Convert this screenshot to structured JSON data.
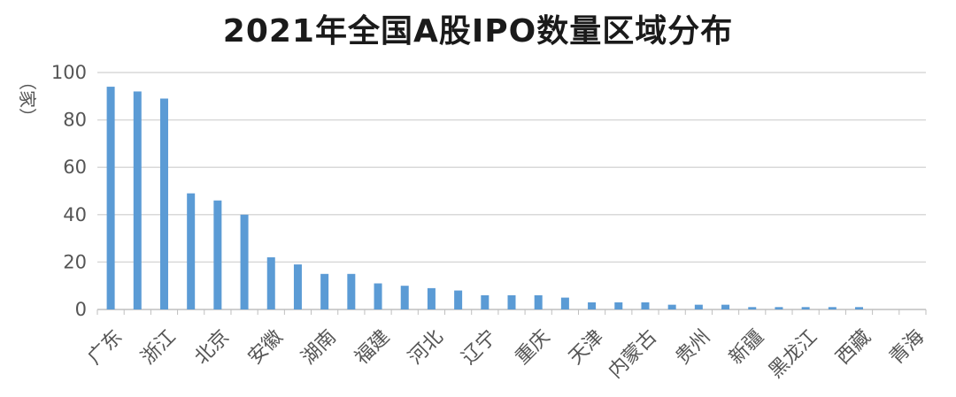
{
  "chart_data": {
    "type": "bar",
    "title": "2021年全国A股IPO数量区域分布",
    "ylabel": "（家）",
    "xlabel": "",
    "ylim": [
      0,
      100
    ],
    "yticks": [
      0,
      20,
      40,
      60,
      80,
      100
    ],
    "grid": true,
    "bar_color": "#5b9bd5",
    "categories": [
      "广东",
      "",
      "浙江",
      "",
      "北京",
      "",
      "安徽",
      "",
      "湖南",
      "",
      "福建",
      "",
      "河北",
      "",
      "辽宁",
      "",
      "重庆",
      "",
      "天津",
      "",
      "内蒙古",
      "",
      "贵州",
      "",
      "新疆",
      "",
      "黑龙江",
      "",
      "西藏",
      "",
      "青海"
    ],
    "values": [
      94,
      92,
      89,
      49,
      46,
      40,
      22,
      19,
      15,
      15,
      11,
      10,
      9,
      8,
      6,
      6,
      6,
      5,
      3,
      3,
      3,
      2,
      2,
      2,
      1,
      1,
      1,
      1,
      1,
      0,
      0
    ]
  }
}
